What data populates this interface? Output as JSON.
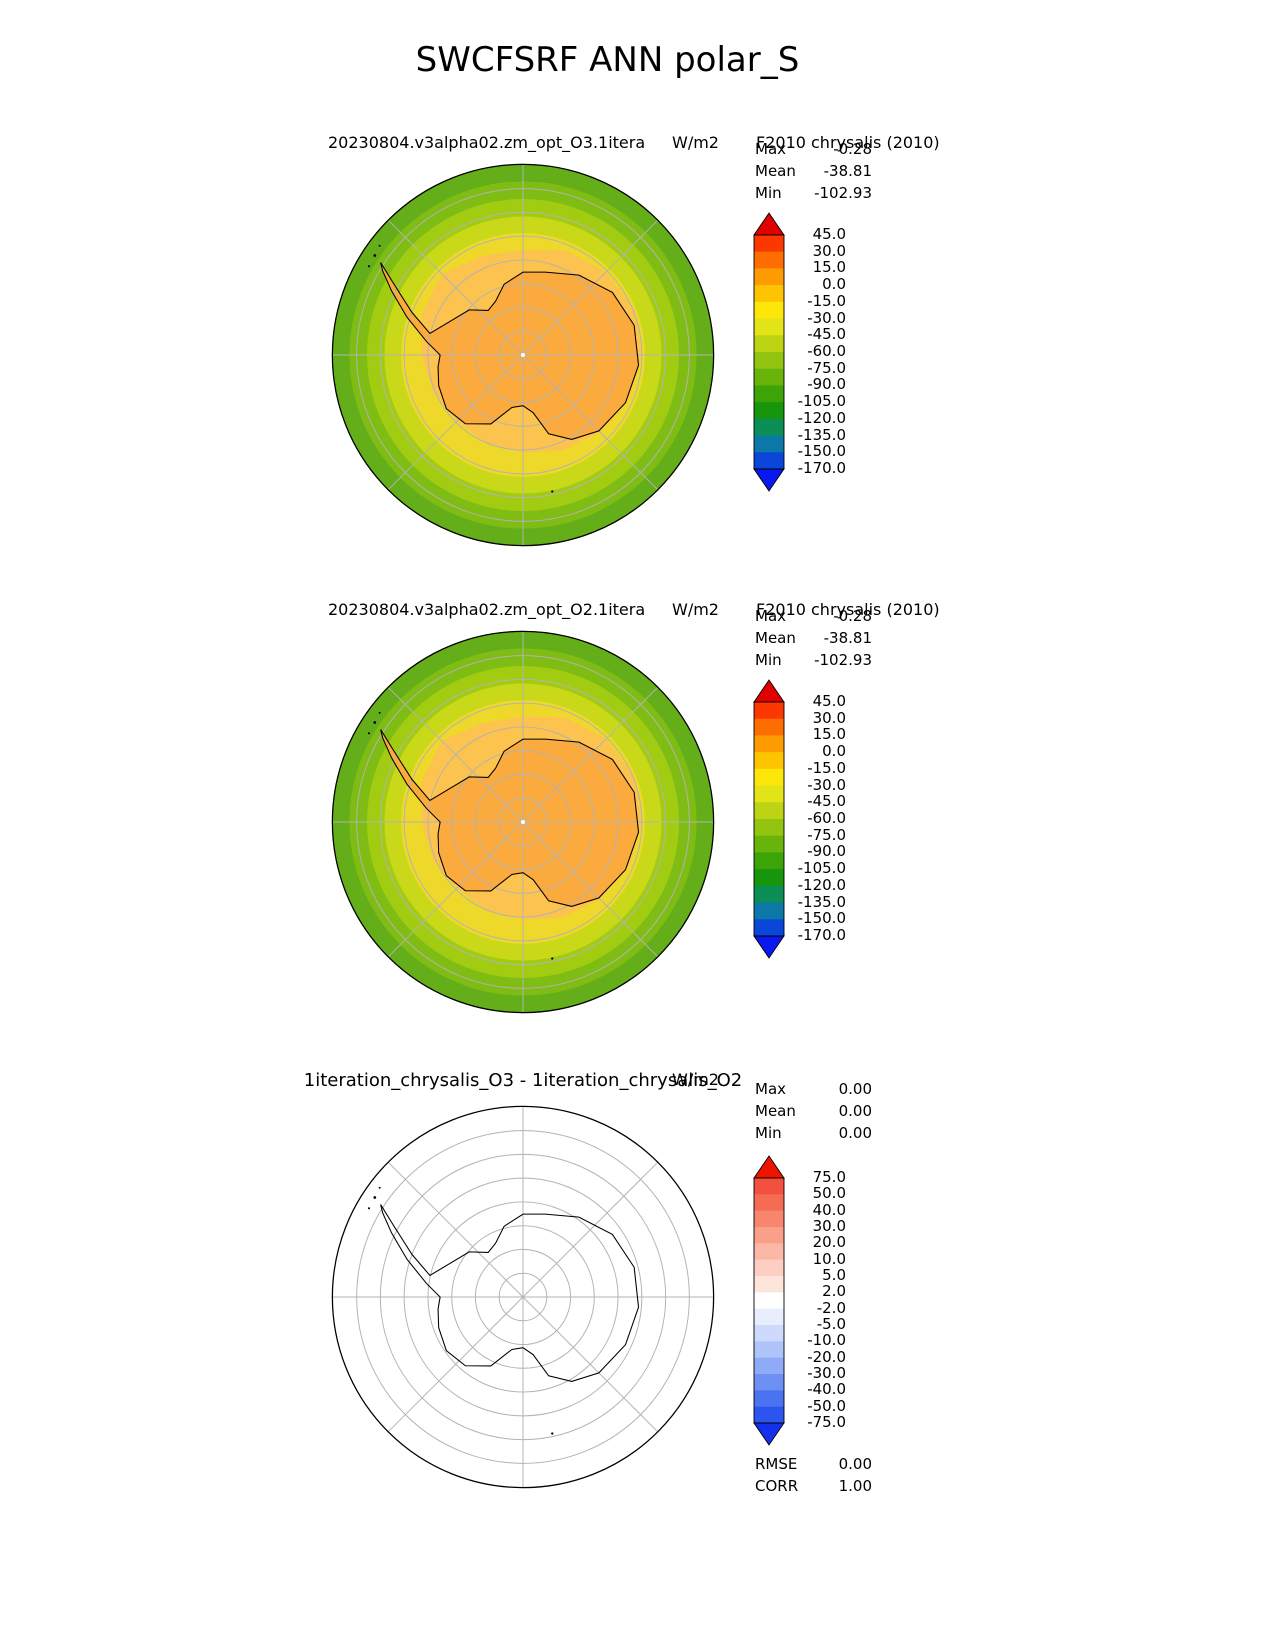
{
  "page_title": "SWCFSRF ANN polar_S",
  "map_style": {
    "rings": [
      {
        "r": 196,
        "color": "#64ae19"
      },
      {
        "r": 178,
        "color": "#7fbd14"
      },
      {
        "r": 160,
        "color": "#a2cc12"
      },
      {
        "r": 142,
        "color": "#c9d91a"
      },
      {
        "r": 125,
        "color": "#eed92b"
      }
    ],
    "blob_color": "#fcc34e",
    "land_color": "#fbaa3e",
    "graticule_color": "#b3b3b3",
    "coast_color": "#000000",
    "pole_dot_color": "#ffffff"
  },
  "chart_data": [
    {
      "type": "heatmap",
      "projection": "south-polar-stereographic",
      "region": "polar_S",
      "title_left": "20230804.v3alpha02.zm_opt_O3.1itera",
      "units": "W/m2",
      "title_right": "F2010 chrysalis (2010)",
      "stats": [
        {
          "label": "Max",
          "value": "-0.28"
        },
        {
          "label": "Mean",
          "value": "-38.81"
        },
        {
          "label": "Min",
          "value": "-102.93"
        }
      ],
      "colorbar": {
        "levels": [
          45,
          30,
          15,
          0,
          -15,
          -30,
          -45,
          -60,
          -75,
          -90,
          -105,
          -120,
          -135,
          -150,
          -170
        ],
        "arrow_top_color": "#e00000",
        "arrow_bottom_color": "#0a18f0",
        "segment_colors": [
          "#fa3800",
          "#fd6d00",
          "#fe9b00",
          "#fec400",
          "#fde70a",
          "#e2e418",
          "#bcd414",
          "#93c40f",
          "#68b40b",
          "#3da408",
          "#16950d",
          "#0b8f56",
          "#0b78a8",
          "#0a46d8"
        ]
      }
    },
    {
      "type": "heatmap",
      "projection": "south-polar-stereographic",
      "region": "polar_S",
      "title_left": "20230804.v3alpha02.zm_opt_O2.1itera",
      "units": "W/m2",
      "title_right": "F2010 chrysalis (2010)",
      "stats": [
        {
          "label": "Max",
          "value": "-0.28"
        },
        {
          "label": "Mean",
          "value": "-38.81"
        },
        {
          "label": "Min",
          "value": "-102.93"
        }
      ],
      "colorbar": {
        "levels": [
          45,
          30,
          15,
          0,
          -15,
          -30,
          -45,
          -60,
          -75,
          -90,
          -105,
          -120,
          -135,
          -150,
          -170
        ],
        "arrow_top_color": "#e00000",
        "arrow_bottom_color": "#0a18f0",
        "segment_colors": [
          "#fa3800",
          "#fd6d00",
          "#fe9b00",
          "#fec400",
          "#fde70a",
          "#e2e418",
          "#bcd414",
          "#93c40f",
          "#68b40b",
          "#3da408",
          "#16950d",
          "#0b8f56",
          "#0b78a8",
          "#0a46d8"
        ]
      }
    },
    {
      "type": "heatmap",
      "projection": "south-polar-stereographic",
      "region": "polar_S",
      "title_left": "1iteration_chrysalis_O3 - 1iteration_chrysalis_O2",
      "units": "W/m2",
      "title_right": "",
      "stats": [
        {
          "label": "Max",
          "value": "0.00"
        },
        {
          "label": "Mean",
          "value": "0.00"
        },
        {
          "label": "Min",
          "value": "0.00"
        }
      ],
      "extra_stats": [
        {
          "label": "RMSE",
          "value": "0.00"
        },
        {
          "label": "CORR",
          "value": "1.00"
        }
      ],
      "colorbar": {
        "levels": [
          75,
          50,
          40,
          30,
          20,
          10,
          5,
          2,
          -2,
          -5,
          -10,
          -20,
          -30,
          -40,
          -50,
          -75
        ],
        "arrow_top_color": "#ee1500",
        "arrow_bottom_color": "#1430ea",
        "segment_colors": [
          "#f4503e",
          "#f66b54",
          "#f8866e",
          "#fa9f8a",
          "#fbb8a6",
          "#fccfc2",
          "#fee5dc",
          "#ffffff",
          "#e8eefd",
          "#cddafb",
          "#afc4f9",
          "#8fabf7",
          "#6e90f4",
          "#4b72f1",
          "#2b55ee"
        ]
      }
    }
  ]
}
